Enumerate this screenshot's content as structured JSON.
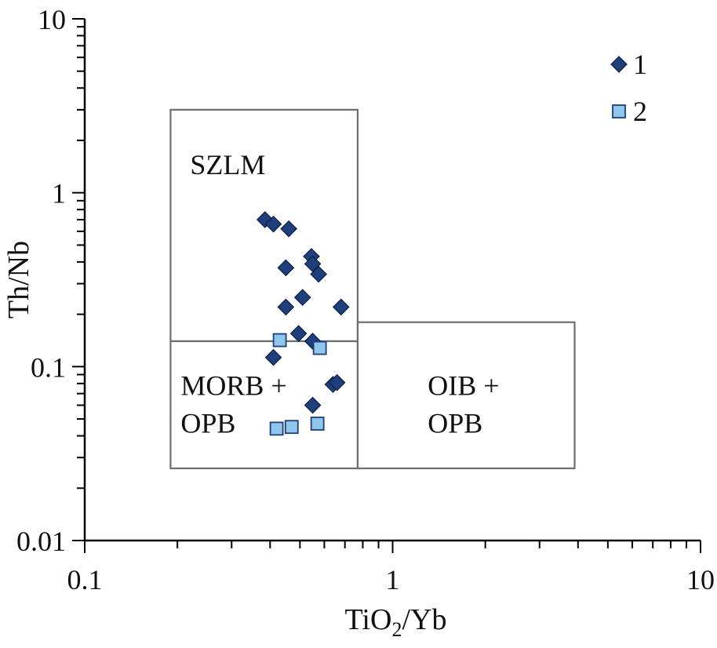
{
  "chart_data": {
    "type": "scatter",
    "title": "",
    "xlabel": "TiO2/Yb",
    "xlabel_main": "TiO",
    "xlabel_sub": "2",
    "xlabel_tail": "/Yb",
    "ylabel": "Th/Nb",
    "xscale": "log",
    "yscale": "log",
    "xlim": [
      0.1,
      10
    ],
    "ylim": [
      0.01,
      10
    ],
    "grid": false,
    "x_ticks": [
      {
        "value": 0.1,
        "label": "0.1"
      },
      {
        "value": 1,
        "label": "1"
      },
      {
        "value": 10,
        "label": "10"
      }
    ],
    "y_ticks": [
      {
        "value": 0.01,
        "label": "0.01"
      },
      {
        "value": 0.1,
        "label": "0.1"
      },
      {
        "value": 1,
        "label": "1"
      },
      {
        "value": 10,
        "label": "10"
      }
    ],
    "regions": [
      {
        "name": "SZLM",
        "lines": [
          "SZLM"
        ],
        "x_range": [
          0.19,
          0.77
        ],
        "y_range": [
          0.14,
          3.0
        ],
        "label_at": [
          0.22,
          1.45
        ]
      },
      {
        "name": "MORB + OPB",
        "lines": [
          "MORB +",
          "OPB"
        ],
        "x_range": [
          0.19,
          0.77
        ],
        "y_range": [
          0.026,
          0.14
        ],
        "label_at": [
          0.205,
          0.078
        ]
      },
      {
        "name": "OIB + OPB",
        "lines": [
          "OIB +",
          "OPB"
        ],
        "x_range": [
          0.77,
          3.9
        ],
        "y_range": [
          0.026,
          0.18
        ],
        "label_at": [
          1.3,
          0.078
        ]
      }
    ],
    "series": [
      {
        "name": "1",
        "marker": "diamond",
        "color": "#1f3f7a",
        "points": [
          {
            "x": 0.385,
            "y": 0.7
          },
          {
            "x": 0.41,
            "y": 0.66
          },
          {
            "x": 0.46,
            "y": 0.62
          },
          {
            "x": 0.45,
            "y": 0.37
          },
          {
            "x": 0.545,
            "y": 0.43
          },
          {
            "x": 0.55,
            "y": 0.39
          },
          {
            "x": 0.575,
            "y": 0.34
          },
          {
            "x": 0.51,
            "y": 0.25
          },
          {
            "x": 0.45,
            "y": 0.22
          },
          {
            "x": 0.68,
            "y": 0.22
          },
          {
            "x": 0.495,
            "y": 0.155
          },
          {
            "x": 0.55,
            "y": 0.14
          },
          {
            "x": 0.41,
            "y": 0.113
          },
          {
            "x": 0.64,
            "y": 0.079
          },
          {
            "x": 0.66,
            "y": 0.081
          },
          {
            "x": 0.55,
            "y": 0.06
          }
        ]
      },
      {
        "name": "2",
        "marker": "square",
        "color": "#8ec6ec",
        "points": [
          {
            "x": 0.43,
            "y": 0.142
          },
          {
            "x": 0.58,
            "y": 0.128
          },
          {
            "x": 0.42,
            "y": 0.044
          },
          {
            "x": 0.47,
            "y": 0.045
          },
          {
            "x": 0.57,
            "y": 0.047
          }
        ]
      }
    ],
    "legend": {
      "position": "top-right",
      "entries": [
        "1",
        "2"
      ]
    }
  }
}
